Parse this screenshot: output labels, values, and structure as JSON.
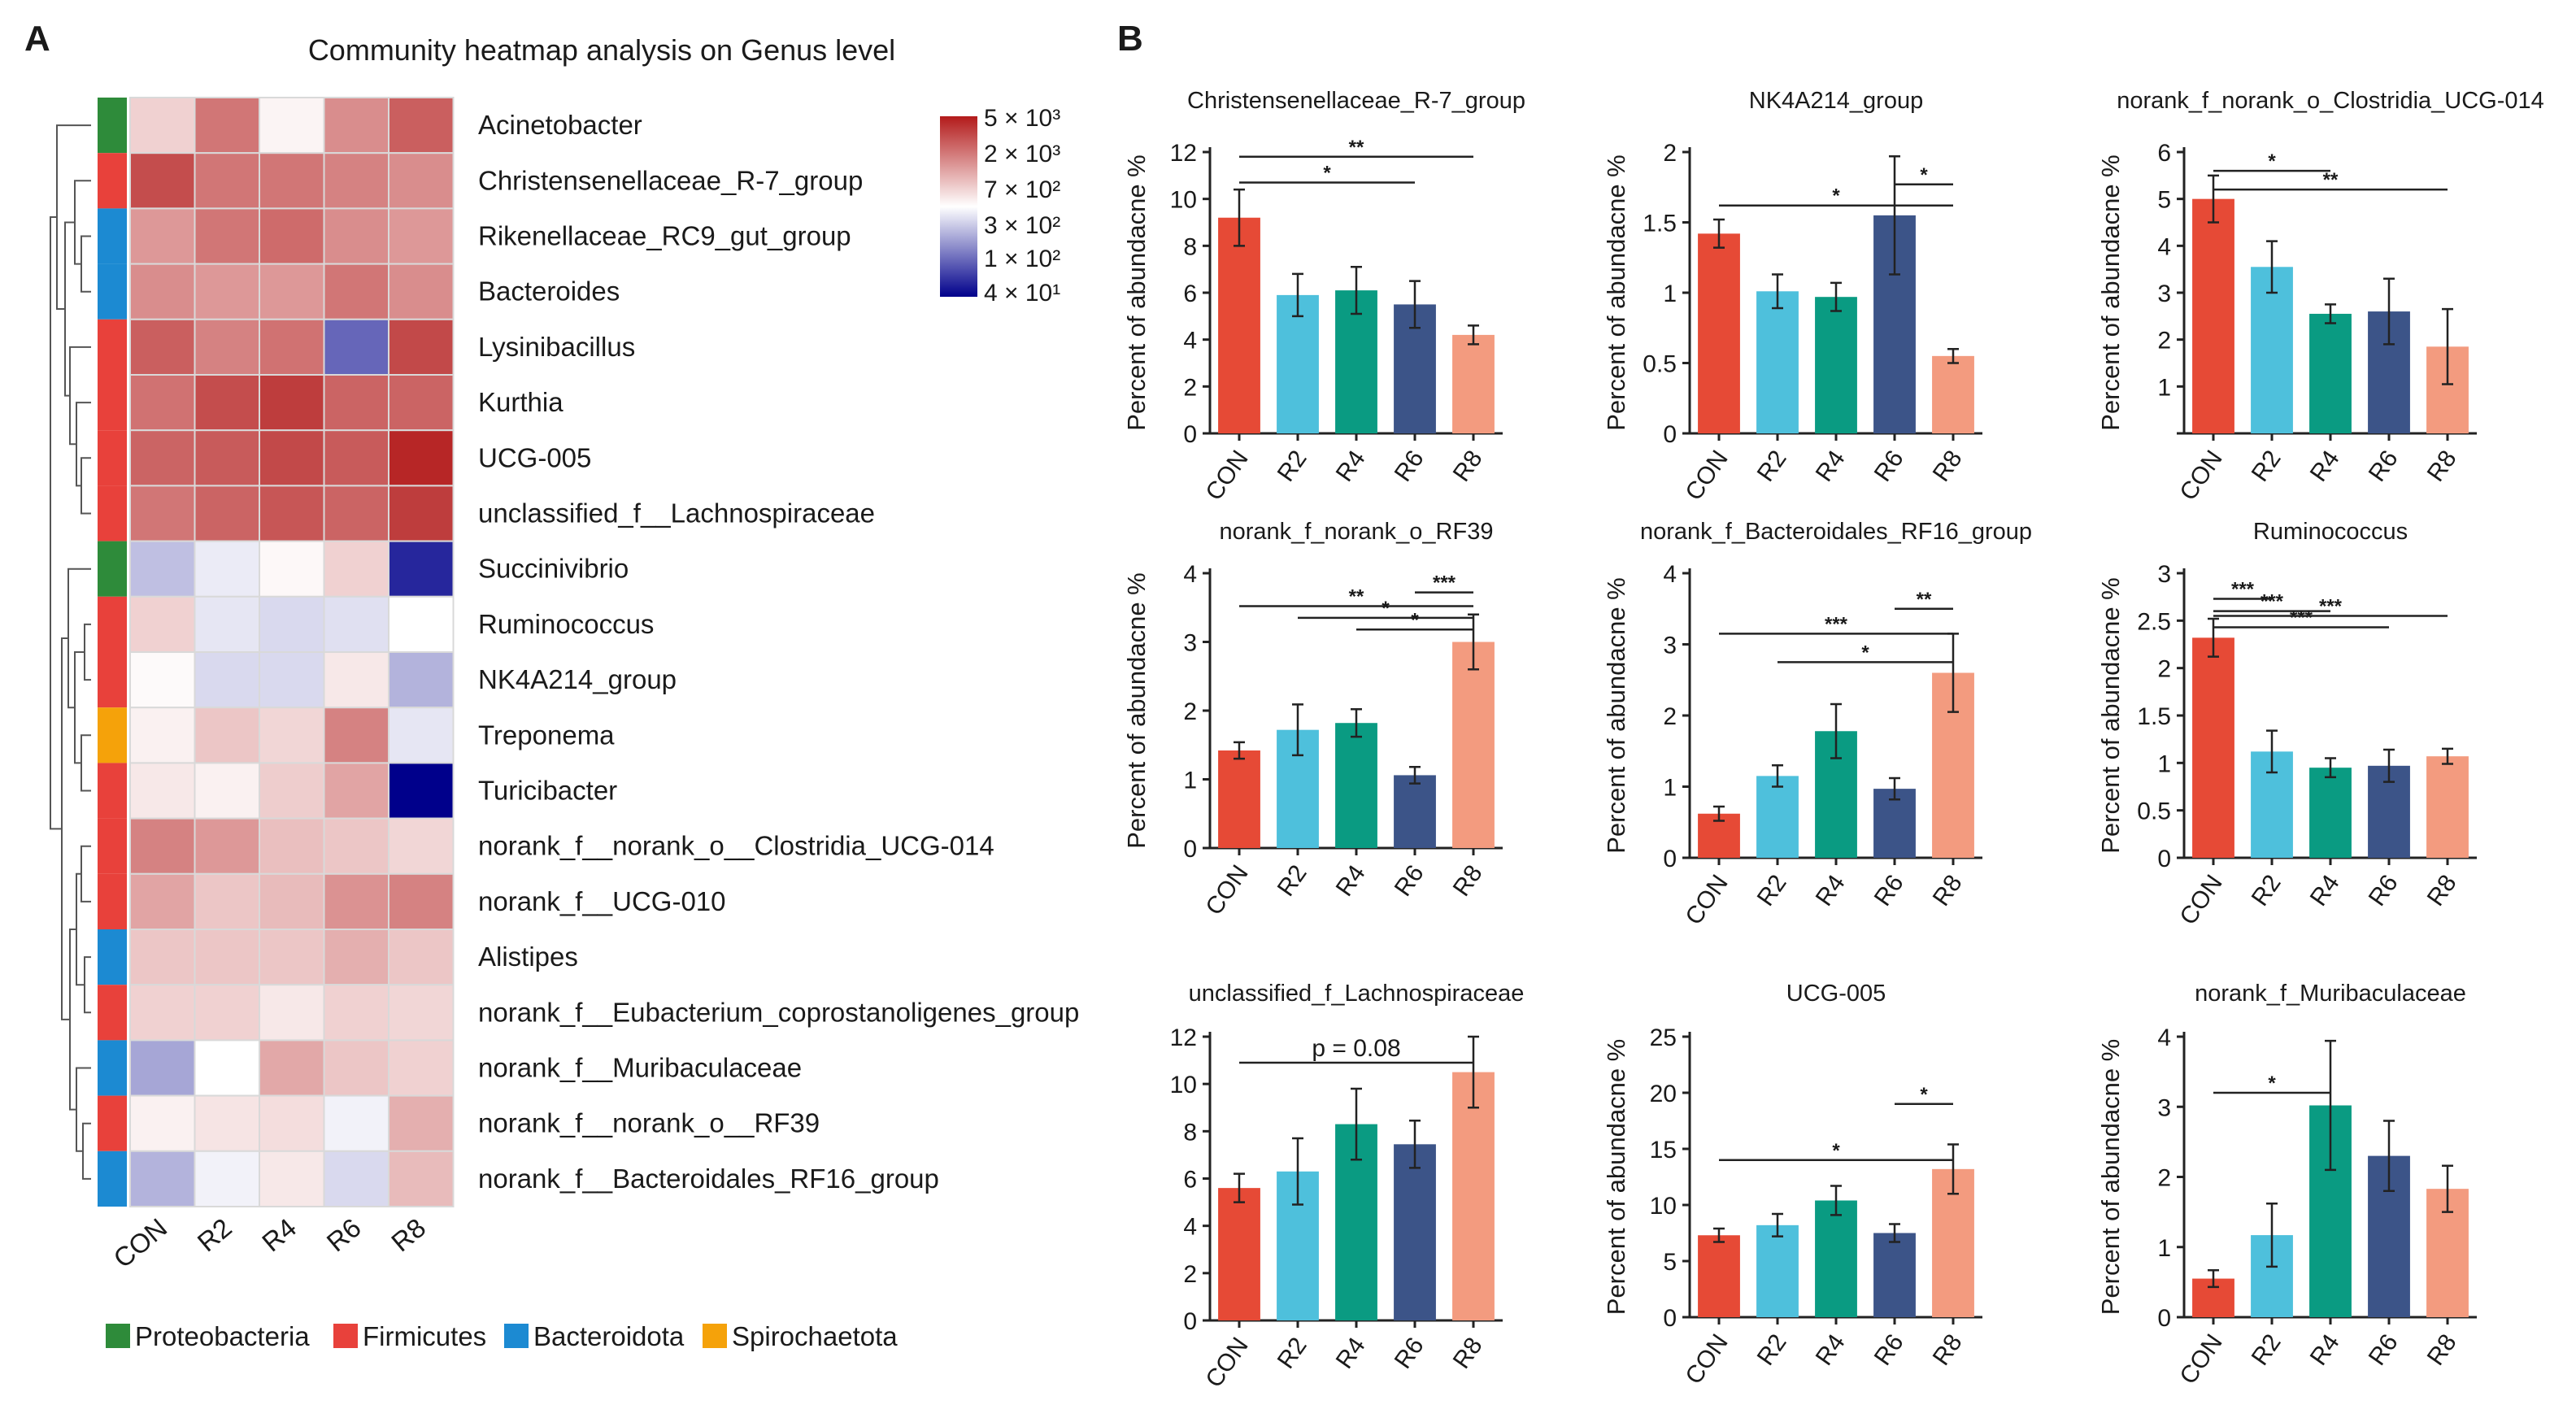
{
  "panels": {
    "a": "A",
    "b": "B"
  },
  "heatmap_title": "Community heatmap analysis on Genus level",
  "color_scale": {
    "labels": [
      "5 × 10³",
      "2 × 10³",
      "7 × 10²",
      "3 × 10²",
      "1 × 10²",
      "4 × 10¹"
    ],
    "high_color": "#b31b1b",
    "mid_color": "#ffffff",
    "low_color": "#00008b"
  },
  "phylum_legend": [
    {
      "name": "Proteobacteria",
      "color": "#2e8b3a"
    },
    {
      "name": "Firmicutes",
      "color": "#e8413b"
    },
    {
      "name": "Bacteroidota",
      "color": "#1c8ad2"
    },
    {
      "name": "Spirochaetota",
      "color": "#f5a20a"
    }
  ],
  "chart_data": [
    {
      "type": "heatmap",
      "title": "Community heatmap analysis on Genus level",
      "columns": [
        "CON",
        "R2",
        "R4",
        "R6",
        "R8"
      ],
      "value_scale": "color index, -1 = lowest abundance (blue), 0 = white, 1 = highest abundance (red)",
      "rows": [
        {
          "genus": "Acinetobacter",
          "phylum": "Proteobacteria",
          "values": [
            0.2,
            0.6,
            0.05,
            0.5,
            0.7
          ]
        },
        {
          "genus": "Christensenellaceae_R-7_group",
          "phylum": "Firmicutes",
          "values": [
            0.78,
            0.6,
            0.6,
            0.55,
            0.5
          ]
        },
        {
          "genus": "Rikenellaceae_RC9_gut_group",
          "phylum": "Bacteroidota",
          "values": [
            0.45,
            0.6,
            0.65,
            0.5,
            0.45
          ]
        },
        {
          "genus": "Bacteroides",
          "phylum": "Bacteroidota",
          "values": [
            0.5,
            0.45,
            0.45,
            0.6,
            0.5
          ]
        },
        {
          "genus": "Lysinibacillus",
          "phylum": "Firmicutes",
          "values": [
            0.7,
            0.55,
            0.62,
            -0.6,
            0.8
          ]
        },
        {
          "genus": "Kurthia",
          "phylum": "Firmicutes",
          "values": [
            0.62,
            0.78,
            0.85,
            0.68,
            0.68
          ]
        },
        {
          "genus": "UCG-005",
          "phylum": "Firmicutes",
          "values": [
            0.68,
            0.72,
            0.8,
            0.72,
            0.95
          ]
        },
        {
          "genus": "unclassified_f__Lachnospiraceae",
          "phylum": "Firmicutes",
          "values": [
            0.6,
            0.68,
            0.74,
            0.68,
            0.85
          ]
        },
        {
          "genus": "Succinivibrio",
          "phylum": "Proteobacteria",
          "values": [
            -0.25,
            -0.08,
            0.03,
            0.2,
            -0.85
          ]
        },
        {
          "genus": "Ruminococcus",
          "phylum": "Firmicutes",
          "values": [
            0.2,
            -0.1,
            -0.15,
            -0.12,
            0.0
          ]
        },
        {
          "genus": "NK4A214_group",
          "phylum": "Firmicutes",
          "values": [
            0.02,
            -0.15,
            -0.15,
            0.1,
            -0.3
          ]
        },
        {
          "genus": "Treponema",
          "phylum": "Spirochaetota",
          "values": [
            0.06,
            0.25,
            0.18,
            0.55,
            -0.1
          ]
        },
        {
          "genus": "Turicibacter",
          "phylum": "Firmicutes",
          "values": [
            0.1,
            0.06,
            0.22,
            0.4,
            -1.0
          ]
        },
        {
          "genus": "norank_f__norank_o__Clostridia_UCG-014",
          "phylum": "Firmicutes",
          "values": [
            0.55,
            0.45,
            0.28,
            0.25,
            0.18
          ]
        },
        {
          "genus": "norank_f__UCG-010",
          "phylum": "Firmicutes",
          "values": [
            0.4,
            0.25,
            0.3,
            0.48,
            0.55
          ]
        },
        {
          "genus": "Alistipes",
          "phylum": "Bacteroidota",
          "values": [
            0.25,
            0.25,
            0.25,
            0.35,
            0.25
          ]
        },
        {
          "genus": "norank_f__Eubacterium_coprostanoligenes_group",
          "phylum": "Firmicutes",
          "values": [
            0.2,
            0.2,
            0.1,
            0.2,
            0.18
          ]
        },
        {
          "genus": "norank_f__Muribaculaceae",
          "phylum": "Bacteroidota",
          "values": [
            -0.35,
            0.0,
            0.38,
            0.25,
            0.2
          ]
        },
        {
          "genus": "norank_f__norank_o__RF39",
          "phylum": "Firmicutes",
          "values": [
            0.06,
            0.12,
            0.15,
            -0.05,
            0.35
          ]
        },
        {
          "genus": "norank_f__Bacteroidales_RF16_group",
          "phylum": "Bacteroidota",
          "values": [
            -0.3,
            -0.05,
            0.1,
            -0.15,
            0.3
          ]
        }
      ]
    },
    {
      "type": "bar",
      "title": "Christensenellaceae_R-7_group",
      "ylabel": "Percent of abundacne %",
      "categories": [
        "CON",
        "R2",
        "R4",
        "R6",
        "R8"
      ],
      "values": [
        9.2,
        5.9,
        6.1,
        5.5,
        4.2
      ],
      "errors": [
        1.2,
        0.9,
        1.0,
        1.0,
        0.4
      ],
      "ylim": [
        0,
        12
      ],
      "yticks": [
        "0",
        "2",
        "4",
        "6",
        "8",
        "10",
        "12"
      ],
      "significance": [
        {
          "from": 0,
          "to": 4,
          "label": "**",
          "y": 11.8
        },
        {
          "from": 0,
          "to": 3,
          "label": "*",
          "y": 10.7
        }
      ]
    },
    {
      "type": "bar",
      "title": "NK4A214_group",
      "ylabel": "Percent of abundacne %",
      "categories": [
        "CON",
        "R2",
        "R4",
        "R6",
        "R8"
      ],
      "values": [
        1.42,
        1.01,
        0.97,
        1.55,
        0.55
      ],
      "errors": [
        0.1,
        0.12,
        0.1,
        0.42,
        0.05
      ],
      "ylim": [
        0,
        2
      ],
      "yticks": [
        "0",
        "0.5",
        "1",
        "1.5",
        "2"
      ],
      "significance": [
        {
          "from": 3,
          "to": 4,
          "label": "*",
          "y": 1.77
        },
        {
          "from": 0,
          "to": 4,
          "label": "*",
          "y": 1.62
        }
      ]
    },
    {
      "type": "bar",
      "title": "norank_f_norank_o_Clostridia_UCG-014",
      "ylabel": "Percent of abundacne %",
      "categories": [
        "CON",
        "R2",
        "R4",
        "R6",
        "R8"
      ],
      "values": [
        5.0,
        3.55,
        2.55,
        2.6,
        1.85
      ],
      "errors": [
        0.5,
        0.55,
        0.2,
        0.7,
        0.8
      ],
      "ylim": [
        0,
        6
      ],
      "yticks": [
        "1",
        "2",
        "3",
        "4",
        "5",
        "6"
      ],
      "significance": [
        {
          "from": 0,
          "to": 2,
          "label": "*",
          "y": 5.6
        },
        {
          "from": 0,
          "to": 4,
          "label": "**",
          "y": 5.2
        }
      ]
    },
    {
      "type": "bar",
      "title": "norank_f_norank_o_RF39",
      "ylabel": "Percent of abundacne %",
      "categories": [
        "CON",
        "R2",
        "R4",
        "R6",
        "R8"
      ],
      "values": [
        1.42,
        1.72,
        1.82,
        1.06,
        3.0
      ],
      "errors": [
        0.12,
        0.37,
        0.2,
        0.12,
        0.4
      ],
      "ylim": [
        0,
        4
      ],
      "yticks": [
        "0",
        "1",
        "2",
        "3",
        "4"
      ],
      "significance": [
        {
          "from": 3,
          "to": 4,
          "label": "***",
          "y": 3.72
        },
        {
          "from": 0,
          "to": 4,
          "label": "**",
          "y": 3.52
        },
        {
          "from": 1,
          "to": 4,
          "label": "*",
          "y": 3.35
        },
        {
          "from": 2,
          "to": 4,
          "label": "*",
          "y": 3.18
        }
      ]
    },
    {
      "type": "bar",
      "title": "norank_f_Bacteroidales_RF16_group",
      "ylabel": "Percent of abundacne %",
      "categories": [
        "CON",
        "R2",
        "R4",
        "R6",
        "R8"
      ],
      "values": [
        0.62,
        1.15,
        1.78,
        0.97,
        2.6
      ],
      "errors": [
        0.1,
        0.15,
        0.38,
        0.15,
        0.55
      ],
      "ylim": [
        0,
        4
      ],
      "yticks": [
        "0",
        "1",
        "2",
        "3",
        "4"
      ],
      "significance": [
        {
          "from": 3,
          "to": 4,
          "label": "**",
          "y": 3.5
        },
        {
          "from": 0,
          "to": 4,
          "label": "***",
          "y": 3.15
        },
        {
          "from": 1,
          "to": 4,
          "label": "*",
          "y": 2.75
        }
      ]
    },
    {
      "type": "bar",
      "title": "Ruminococcus",
      "ylabel": "Percent of abundacne %",
      "categories": [
        "CON",
        "R2",
        "R4",
        "R6",
        "R8"
      ],
      "values": [
        2.32,
        1.12,
        0.95,
        0.97,
        1.07
      ],
      "errors": [
        0.2,
        0.22,
        0.1,
        0.17,
        0.08
      ],
      "ylim": [
        0,
        3
      ],
      "yticks": [
        "0",
        "0.5",
        "1",
        "1.5",
        "2",
        "2.5",
        "3"
      ],
      "significance": [
        {
          "from": 0,
          "to": 1,
          "label": "***",
          "y": 2.73
        },
        {
          "from": 0,
          "to": 2,
          "label": "***",
          "y": 2.6
        },
        {
          "from": 0,
          "to": 3,
          "label": "***",
          "y": 2.43
        },
        {
          "from": 0,
          "to": 4,
          "label": "***",
          "y": 2.55
        }
      ]
    },
    {
      "type": "bar",
      "title": "unclassified_f_Lachnospiraceae",
      "ylabel": "",
      "categories": [
        "CON",
        "R2",
        "R4",
        "R6",
        "R8"
      ],
      "values": [
        5.6,
        6.3,
        8.3,
        7.45,
        10.5
      ],
      "errors": [
        0.6,
        1.4,
        1.5,
        1.0,
        1.5
      ],
      "ylim": [
        0,
        12
      ],
      "yticks": [
        "0",
        "2",
        "4",
        "6",
        "8",
        "10",
        "12"
      ],
      "significance": [
        {
          "from": 0,
          "to": 4,
          "label": "p = 0.08",
          "y": 10.9
        }
      ]
    },
    {
      "type": "bar",
      "title": "UCG-005",
      "ylabel": "Percent of abundacne %",
      "categories": [
        "CON",
        "R2",
        "R4",
        "R6",
        "R8"
      ],
      "values": [
        7.3,
        8.2,
        10.4,
        7.5,
        13.2
      ],
      "errors": [
        0.6,
        1.0,
        1.3,
        0.8,
        2.2
      ],
      "ylim": [
        0,
        25
      ],
      "yticks": [
        "0",
        "5",
        "10",
        "15",
        "20",
        "25"
      ],
      "significance": [
        {
          "from": 3,
          "to": 4,
          "label": "*",
          "y": 19.0
        },
        {
          "from": 0,
          "to": 4,
          "label": "*",
          "y": 14.0
        }
      ]
    },
    {
      "type": "bar",
      "title": "norank_f_Muribaculaceae",
      "ylabel": "Percent of abundacne %",
      "categories": [
        "CON",
        "R2",
        "R4",
        "R6",
        "R8"
      ],
      "values": [
        0.55,
        1.17,
        3.02,
        2.3,
        1.83
      ],
      "errors": [
        0.12,
        0.45,
        0.92,
        0.5,
        0.33
      ],
      "ylim": [
        0,
        4
      ],
      "yticks": [
        "0",
        "1",
        "2",
        "3",
        "4"
      ],
      "significance": [
        {
          "from": 0,
          "to": 2,
          "label": "*",
          "y": 3.2
        }
      ]
    }
  ],
  "bar_colors": [
    "#e64a36",
    "#4ec0dc",
    "#0a9b82",
    "#3c5488",
    "#f39b7f"
  ]
}
